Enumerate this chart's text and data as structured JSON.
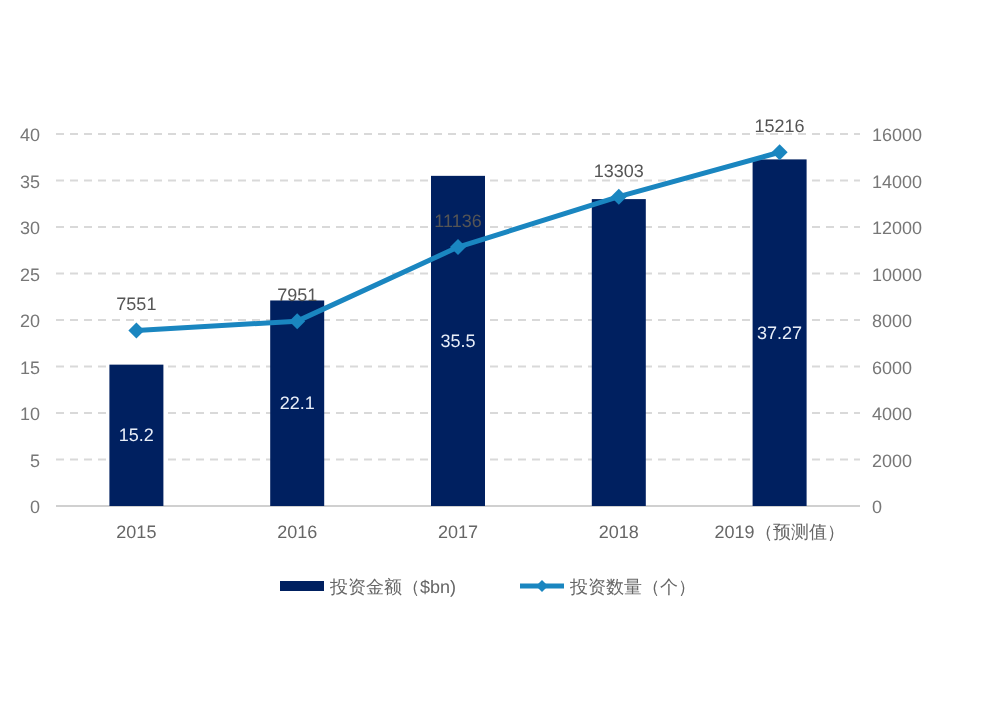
{
  "chart_data": {
    "type": "bar",
    "categories": [
      "2015",
      "2016",
      "2017",
      "2018",
      "2019（预测值）"
    ],
    "series": [
      {
        "name": "投资金额（$bn)",
        "color": "#002060",
        "values": [
          15.2,
          22.1,
          35.5,
          33.0,
          37.27
        ],
        "value_labels": [
          "15.2",
          "22.1",
          "35.5",
          null,
          "37.27"
        ]
      },
      {
        "name": "投资数量（个）",
        "type": "line",
        "axis": "y2",
        "color": "#1a86c0",
        "values": [
          7551,
          7951,
          11136,
          13303,
          15216
        ],
        "value_labels": [
          "7551",
          "7951",
          "11136",
          "13303",
          "15216"
        ],
        "marker": "diamond"
      }
    ],
    "ylim": [
      0,
      40
    ],
    "yticks": [
      0,
      5,
      10,
      15,
      20,
      25,
      30,
      35,
      40
    ],
    "y2lim": [
      0,
      16000
    ],
    "y2ticks": [
      0,
      2000,
      4000,
      6000,
      8000,
      10000,
      12000,
      14000,
      16000
    ],
    "grid": "y",
    "legend": "bottom"
  }
}
